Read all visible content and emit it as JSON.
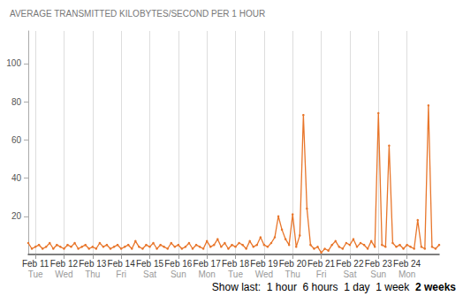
{
  "chart_data": {
    "type": "line",
    "title": "AVERAGE TRANSMITTED KILOBYTES/SECOND PER 1 HOUR",
    "categories": [
      null,
      null,
      "Feb 11",
      null,
      null,
      null,
      null,
      null,
      null,
      null,
      "Feb 12",
      null,
      null,
      null,
      null,
      null,
      null,
      null,
      "Feb 13",
      null,
      null,
      null,
      null,
      null,
      null,
      null,
      "Feb 14",
      null,
      null,
      null,
      null,
      null,
      null,
      null,
      "Feb 15",
      null,
      null,
      null,
      null,
      null,
      null,
      null,
      "Feb 16",
      null,
      null,
      null,
      null,
      null,
      null,
      null,
      "Feb 17",
      null,
      null,
      null,
      null,
      null,
      null,
      null,
      "Feb 18",
      null,
      null,
      null,
      null,
      null,
      null,
      null,
      "Feb 19",
      null,
      null,
      null,
      null,
      null,
      null,
      null,
      "Feb 20",
      null,
      null,
      null,
      null,
      null,
      null,
      null,
      "Feb 21",
      null,
      null,
      null,
      null,
      null,
      null,
      null,
      "Feb 22",
      null,
      null,
      null,
      null,
      null,
      null,
      null,
      "Feb 23",
      null,
      null,
      null,
      null,
      null,
      null,
      null,
      "Feb 24",
      null,
      null,
      null,
      null,
      null,
      null,
      null,
      null,
      null
    ],
    "weekdays": [
      null,
      null,
      "Tue",
      null,
      null,
      null,
      null,
      null,
      null,
      null,
      "Wed",
      null,
      null,
      null,
      null,
      null,
      null,
      null,
      "Thu",
      null,
      null,
      null,
      null,
      null,
      null,
      null,
      "Fri",
      null,
      null,
      null,
      null,
      null,
      null,
      null,
      "Sat",
      null,
      null,
      null,
      null,
      null,
      null,
      null,
      "Sun",
      null,
      null,
      null,
      null,
      null,
      null,
      null,
      "Mon",
      null,
      null,
      null,
      null,
      null,
      null,
      null,
      "Tue",
      null,
      null,
      null,
      null,
      null,
      null,
      null,
      "Wed",
      null,
      null,
      null,
      null,
      null,
      null,
      null,
      "Thu",
      null,
      null,
      null,
      null,
      null,
      null,
      null,
      "Fri",
      null,
      null,
      null,
      null,
      null,
      null,
      null,
      "Sat",
      null,
      null,
      null,
      null,
      null,
      null,
      null,
      "Sun",
      null,
      null,
      null,
      null,
      null,
      null,
      null,
      "Mon",
      null,
      null,
      null,
      null,
      null,
      null,
      null,
      null,
      null
    ],
    "values": [
      6,
      3,
      4,
      5,
      3,
      4,
      6,
      3,
      5,
      4,
      3,
      5,
      4,
      6,
      3,
      4,
      5,
      3,
      4,
      3,
      6,
      4,
      5,
      3,
      4,
      5,
      3,
      4,
      5,
      3,
      7,
      4,
      3,
      5,
      4,
      6,
      3,
      5,
      4,
      3,
      6,
      4,
      5,
      3,
      4,
      6,
      3,
      5,
      4,
      3,
      7,
      4,
      5,
      8,
      4,
      6,
      3,
      5,
      4,
      6,
      5,
      3,
      7,
      4,
      5,
      9,
      5,
      4,
      6,
      9,
      20,
      13,
      8,
      5,
      21,
      4,
      10,
      73,
      24,
      5,
      3,
      4,
      1,
      3,
      2,
      5,
      7,
      4,
      3,
      6,
      5,
      8,
      4,
      6,
      5,
      3,
      7,
      4,
      74,
      5,
      4,
      57,
      6,
      4,
      5,
      3,
      5,
      4,
      3,
      18,
      4,
      3,
      78,
      4,
      3,
      5
    ],
    "color": "#e8762b",
    "marker": "circle",
    "ylim": [
      0,
      117
    ],
    "yticks": [
      20,
      40,
      60,
      80,
      100
    ],
    "grid": true,
    "footer": {
      "label": "Show last:",
      "options": [
        "1 hour",
        "6 hours",
        "1 day",
        "1 week",
        "2 weeks"
      ],
      "selected": "2 weeks"
    }
  }
}
